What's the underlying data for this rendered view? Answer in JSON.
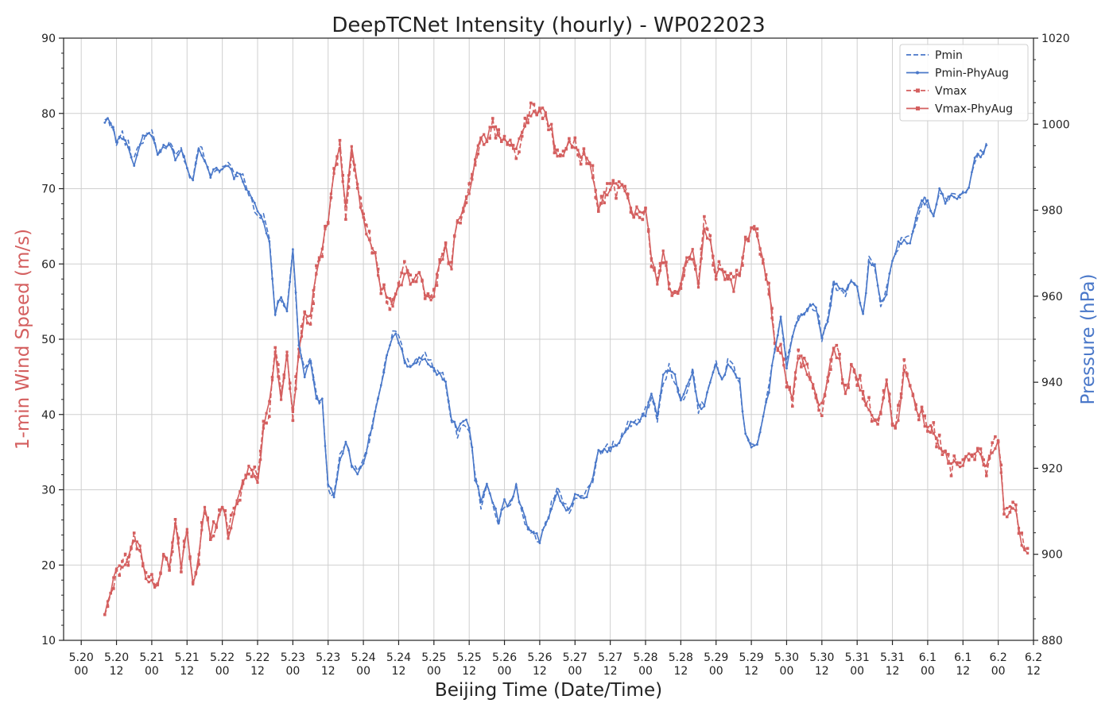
{
  "chart_data": {
    "type": "line",
    "title": "DeepTCNet Intensity (hourly) - WP022023",
    "xlabel": "Beijing Time (Date/Time)",
    "ylabel_left": "1-min Wind Speed (m/s)",
    "ylabel_right": "Pressure (hPa)",
    "ylim_left": [
      10,
      90
    ],
    "ylim_right": [
      880,
      1020
    ],
    "yticks_left": [
      "10",
      "20",
      "30",
      "40",
      "50",
      "60",
      "70",
      "80",
      "90"
    ],
    "yticks_right": [
      "880",
      "900",
      "920",
      "940",
      "960",
      "980",
      "1000",
      "1020"
    ],
    "x_range_hours": [
      -6,
      324
    ],
    "x_ticks": [
      {
        "date": "5.20",
        "time": "00"
      },
      {
        "date": "5.20",
        "time": "12"
      },
      {
        "date": "5.21",
        "time": "00"
      },
      {
        "date": "5.21",
        "time": "12"
      },
      {
        "date": "5.22",
        "time": "00"
      },
      {
        "date": "5.22",
        "time": "12"
      },
      {
        "date": "5.23",
        "time": "00"
      },
      {
        "date": "5.23",
        "time": "12"
      },
      {
        "date": "5.24",
        "time": "00"
      },
      {
        "date": "5.24",
        "time": "12"
      },
      {
        "date": "5.25",
        "time": "00"
      },
      {
        "date": "5.25",
        "time": "12"
      },
      {
        "date": "5.26",
        "time": "00"
      },
      {
        "date": "5.26",
        "time": "12"
      },
      {
        "date": "5.27",
        "time": "00"
      },
      {
        "date": "5.27",
        "time": "12"
      },
      {
        "date": "5.28",
        "time": "00"
      },
      {
        "date": "5.28",
        "time": "12"
      },
      {
        "date": "5.29",
        "time": "00"
      },
      {
        "date": "5.29",
        "time": "12"
      },
      {
        "date": "5.30",
        "time": "00"
      },
      {
        "date": "5.30",
        "time": "12"
      },
      {
        "date": "5.31",
        "time": "00"
      },
      {
        "date": "5.31",
        "time": "12"
      },
      {
        "date": "6.1",
        "time": "00"
      },
      {
        "date": "6.1",
        "time": "12"
      },
      {
        "date": "6.2",
        "time": "00"
      },
      {
        "date": "6.2",
        "time": "12"
      }
    ],
    "grid": true,
    "legend_position": "top-right",
    "series": [
      {
        "name": "Pmin",
        "axis": "right",
        "color": "#4a78c9",
        "style": "dashed",
        "marker": "none"
      },
      {
        "name": "Pmin-PhyAug",
        "axis": "right",
        "color": "#4a78c9",
        "style": "solid",
        "marker": "dot"
      },
      {
        "name": "Vmax",
        "axis": "left",
        "color": "#d45f5f",
        "style": "dashed",
        "marker": "square"
      },
      {
        "name": "Vmax-PhyAug",
        "axis": "left",
        "color": "#d45f5f",
        "style": "solid",
        "marker": "square"
      }
    ],
    "vmax_anchors": [
      [
        8,
        13
      ],
      [
        10,
        17
      ],
      [
        12,
        19
      ],
      [
        14,
        20
      ],
      [
        16,
        21
      ],
      [
        18,
        23
      ],
      [
        20,
        22
      ],
      [
        22,
        18
      ],
      [
        24,
        18
      ],
      [
        26,
        17
      ],
      [
        28,
        21
      ],
      [
        30,
        20
      ],
      [
        32,
        26
      ],
      [
        34,
        19
      ],
      [
        36,
        25
      ],
      [
        38,
        17
      ],
      [
        40,
        21
      ],
      [
        42,
        28
      ],
      [
        44,
        24
      ],
      [
        46,
        26
      ],
      [
        48,
        28
      ],
      [
        50,
        24
      ],
      [
        52,
        27
      ],
      [
        54,
        29
      ],
      [
        56,
        32
      ],
      [
        58,
        33
      ],
      [
        60,
        31
      ],
      [
        62,
        38
      ],
      [
        64,
        41
      ],
      [
        66,
        49
      ],
      [
        68,
        42
      ],
      [
        70,
        48
      ],
      [
        72,
        40
      ],
      [
        74,
        48
      ],
      [
        76,
        54
      ],
      [
        78,
        53
      ],
      [
        80,
        59
      ],
      [
        82,
        62
      ],
      [
        84,
        66
      ],
      [
        86,
        72
      ],
      [
        88,
        76
      ],
      [
        90,
        67
      ],
      [
        92,
        75
      ],
      [
        94,
        70
      ],
      [
        96,
        66
      ],
      [
        98,
        63
      ],
      [
        100,
        61
      ],
      [
        102,
        57
      ],
      [
        104,
        55
      ],
      [
        106,
        55
      ],
      [
        108,
        57
      ],
      [
        110,
        59
      ],
      [
        112,
        58
      ],
      [
        114,
        59
      ],
      [
        116,
        58
      ],
      [
        118,
        55
      ],
      [
        120,
        56
      ],
      [
        122,
        60
      ],
      [
        124,
        62
      ],
      [
        126,
        60
      ],
      [
        128,
        66
      ],
      [
        130,
        67
      ],
      [
        132,
        70
      ],
      [
        134,
        74
      ],
      [
        136,
        76
      ],
      [
        138,
        77
      ],
      [
        140,
        78
      ],
      [
        142,
        77
      ],
      [
        144,
        76
      ],
      [
        146,
        77
      ],
      [
        148,
        75
      ],
      [
        150,
        77
      ],
      [
        152,
        80
      ],
      [
        154,
        80
      ],
      [
        156,
        81
      ],
      [
        158,
        80
      ],
      [
        160,
        78
      ],
      [
        162,
        74
      ],
      [
        164,
        75
      ],
      [
        166,
        76
      ],
      [
        168,
        76
      ],
      [
        170,
        74
      ],
      [
        172,
        74
      ],
      [
        174,
        72
      ],
      [
        176,
        68
      ],
      [
        178,
        69
      ],
      [
        180,
        70
      ],
      [
        182,
        70
      ],
      [
        184,
        70
      ],
      [
        186,
        69
      ],
      [
        188,
        67
      ],
      [
        190,
        67
      ],
      [
        192,
        67
      ],
      [
        194,
        61
      ],
      [
        196,
        58
      ],
      [
        198,
        61
      ],
      [
        200,
        57
      ],
      [
        202,
        56
      ],
      [
        204,
        58
      ],
      [
        206,
        61
      ],
      [
        208,
        62
      ],
      [
        210,
        57
      ],
      [
        212,
        65
      ],
      [
        214,
        63
      ],
      [
        216,
        59
      ],
      [
        218,
        59
      ],
      [
        220,
        58
      ],
      [
        222,
        57
      ],
      [
        224,
        59
      ],
      [
        226,
        63
      ],
      [
        228,
        65
      ],
      [
        230,
        64
      ],
      [
        232,
        60
      ],
      [
        234,
        57
      ],
      [
        236,
        49
      ],
      [
        238,
        49
      ],
      [
        240,
        45
      ],
      [
        242,
        42
      ],
      [
        244,
        48
      ],
      [
        246,
        47
      ],
      [
        248,
        45
      ],
      [
        250,
        42
      ],
      [
        252,
        41
      ],
      [
        254,
        45
      ],
      [
        256,
        49
      ],
      [
        258,
        47
      ],
      [
        260,
        43
      ],
      [
        262,
        46
      ],
      [
        264,
        45
      ],
      [
        266,
        43
      ],
      [
        268,
        41
      ],
      [
        270,
        39
      ],
      [
        272,
        41
      ],
      [
        274,
        45
      ],
      [
        276,
        38
      ],
      [
        278,
        40
      ],
      [
        280,
        46
      ],
      [
        282,
        44
      ],
      [
        284,
        41
      ],
      [
        286,
        40
      ],
      [
        288,
        38
      ],
      [
        290,
        38
      ],
      [
        292,
        36
      ],
      [
        294,
        35
      ],
      [
        296,
        33
      ],
      [
        298,
        34
      ],
      [
        300,
        33
      ],
      [
        302,
        35
      ],
      [
        304,
        34
      ],
      [
        306,
        35
      ],
      [
        308,
        33
      ],
      [
        310,
        35
      ],
      [
        312,
        37
      ],
      [
        314,
        28
      ],
      [
        316,
        27
      ],
      [
        318,
        28
      ],
      [
        320,
        23
      ],
      [
        322,
        21
      ]
    ],
    "pmin_anchors": [
      [
        8,
        1001
      ],
      [
        10,
        1000
      ],
      [
        12,
        996
      ],
      [
        14,
        997
      ],
      [
        16,
        995
      ],
      [
        18,
        991
      ],
      [
        20,
        996
      ],
      [
        22,
        998
      ],
      [
        24,
        998
      ],
      [
        26,
        993
      ],
      [
        28,
        995
      ],
      [
        30,
        995
      ],
      [
        32,
        992
      ],
      [
        34,
        994
      ],
      [
        36,
        990
      ],
      [
        38,
        987
      ],
      [
        40,
        995
      ],
      [
        42,
        992
      ],
      [
        44,
        988
      ],
      [
        46,
        990
      ],
      [
        48,
        990
      ],
      [
        50,
        990
      ],
      [
        52,
        988
      ],
      [
        54,
        989
      ],
      [
        56,
        985
      ],
      [
        58,
        982
      ],
      [
        60,
        980
      ],
      [
        62,
        978
      ],
      [
        64,
        972
      ],
      [
        66,
        956
      ],
      [
        68,
        960
      ],
      [
        70,
        957
      ],
      [
        72,
        971
      ],
      [
        74,
        949
      ],
      [
        76,
        942
      ],
      [
        78,
        945
      ],
      [
        80,
        936
      ],
      [
        82,
        936
      ],
      [
        84,
        916
      ],
      [
        86,
        914
      ],
      [
        88,
        922
      ],
      [
        90,
        926
      ],
      [
        92,
        921
      ],
      [
        94,
        918
      ],
      [
        96,
        921
      ],
      [
        98,
        927
      ],
      [
        100,
        933
      ],
      [
        102,
        939
      ],
      [
        104,
        947
      ],
      [
        106,
        951
      ],
      [
        108,
        950
      ],
      [
        110,
        945
      ],
      [
        112,
        943
      ],
      [
        114,
        945
      ],
      [
        116,
        946
      ],
      [
        118,
        945
      ],
      [
        120,
        943
      ],
      [
        122,
        942
      ],
      [
        124,
        940
      ],
      [
        126,
        932
      ],
      [
        128,
        928
      ],
      [
        130,
        931
      ],
      [
        132,
        930
      ],
      [
        134,
        918
      ],
      [
        136,
        912
      ],
      [
        138,
        916
      ],
      [
        140,
        912
      ],
      [
        142,
        908
      ],
      [
        144,
        912
      ],
      [
        146,
        912
      ],
      [
        148,
        916
      ],
      [
        150,
        910
      ],
      [
        152,
        906
      ],
      [
        154,
        905
      ],
      [
        156,
        903
      ],
      [
        158,
        907
      ],
      [
        160,
        911
      ],
      [
        162,
        915
      ],
      [
        164,
        911
      ],
      [
        166,
        910
      ],
      [
        168,
        914
      ],
      [
        170,
        913
      ],
      [
        172,
        914
      ],
      [
        174,
        918
      ],
      [
        176,
        924
      ],
      [
        178,
        924
      ],
      [
        180,
        925
      ],
      [
        182,
        925
      ],
      [
        184,
        928
      ],
      [
        186,
        930
      ],
      [
        188,
        930
      ],
      [
        190,
        931
      ],
      [
        192,
        933
      ],
      [
        194,
        937
      ],
      [
        196,
        932
      ],
      [
        198,
        941
      ],
      [
        200,
        943
      ],
      [
        202,
        941
      ],
      [
        204,
        935
      ],
      [
        206,
        939
      ],
      [
        208,
        942
      ],
      [
        210,
        934
      ],
      [
        212,
        935
      ],
      [
        214,
        940
      ],
      [
        216,
        944
      ],
      [
        218,
        940
      ],
      [
        220,
        944
      ],
      [
        222,
        943
      ],
      [
        224,
        940
      ],
      [
        226,
        928
      ],
      [
        228,
        925
      ],
      [
        230,
        925
      ],
      [
        232,
        932
      ],
      [
        234,
        938
      ],
      [
        236,
        948
      ],
      [
        238,
        955
      ],
      [
        240,
        944
      ],
      [
        242,
        950
      ],
      [
        244,
        955
      ],
      [
        246,
        956
      ],
      [
        248,
        957
      ],
      [
        250,
        958
      ],
      [
        252,
        950
      ],
      [
        254,
        954
      ],
      [
        256,
        963
      ],
      [
        258,
        961
      ],
      [
        260,
        961
      ],
      [
        262,
        964
      ],
      [
        264,
        962
      ],
      [
        266,
        955
      ],
      [
        268,
        968
      ],
      [
        270,
        967
      ],
      [
        272,
        958
      ],
      [
        274,
        961
      ],
      [
        276,
        968
      ],
      [
        278,
        972
      ],
      [
        280,
        973
      ],
      [
        282,
        973
      ],
      [
        284,
        978
      ],
      [
        286,
        982
      ],
      [
        288,
        982
      ],
      [
        290,
        979
      ],
      [
        292,
        985
      ],
      [
        294,
        982
      ],
      [
        296,
        983
      ],
      [
        298,
        983
      ],
      [
        300,
        984
      ],
      [
        302,
        986
      ],
      [
        304,
        992
      ],
      [
        306,
        993
      ],
      [
        308,
        995
      ]
    ]
  }
}
